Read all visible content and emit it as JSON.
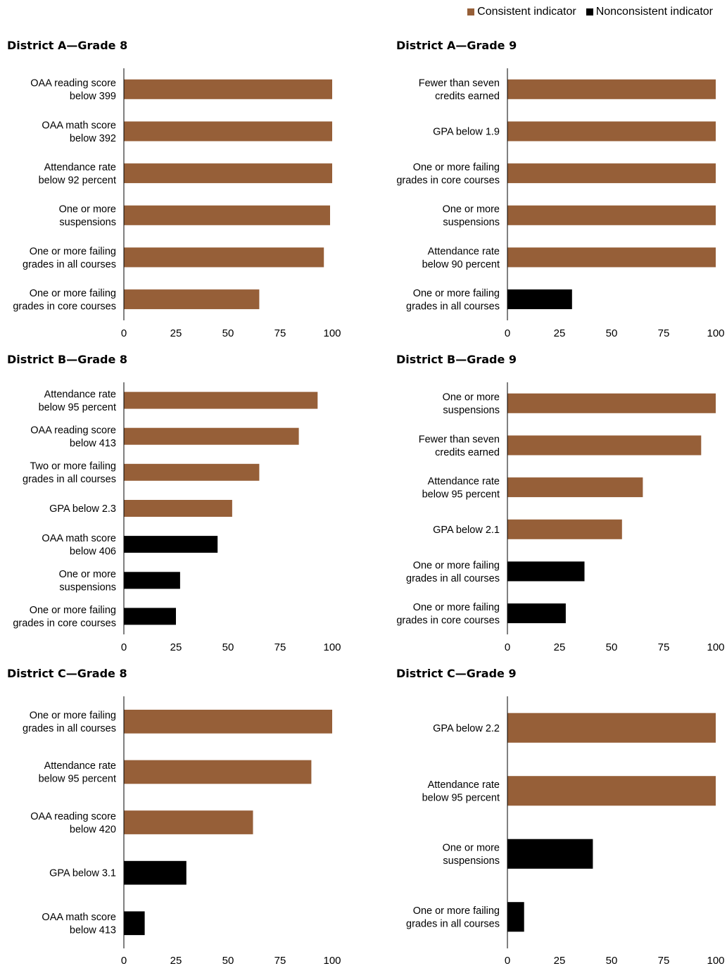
{
  "legend": [
    {
      "label": "Consistent indicator",
      "color": "#965F38"
    },
    {
      "label": "Nonconsistent indicator",
      "color": "#000000"
    }
  ],
  "chart_data": [
    {
      "type": "bar",
      "orientation": "horizontal",
      "title": "District A—Grade 8",
      "categories": [
        [
          "OAA reading score",
          "below 399"
        ],
        [
          "OAA math score",
          "below 392"
        ],
        [
          "Attendance rate",
          "below 92 percent"
        ],
        [
          "One or more",
          "suspensions"
        ],
        [
          "One or more failing",
          "grades in all courses"
        ],
        [
          "One or more failing",
          "grades in core courses"
        ]
      ],
      "values": [
        100,
        100,
        100,
        99,
        96,
        65
      ],
      "consistent": [
        true,
        true,
        true,
        true,
        true,
        true
      ],
      "xlim": [
        0,
        100
      ],
      "xticks": [
        0,
        25,
        50,
        75,
        100
      ]
    },
    {
      "type": "bar",
      "orientation": "horizontal",
      "title": "District A—Grade 9",
      "categories": [
        [
          "Fewer than seven",
          "credits earned"
        ],
        [
          "GPA below 1.9"
        ],
        [
          "One or more failing",
          "grades in core courses"
        ],
        [
          "One or more",
          "suspensions"
        ],
        [
          "Attendance rate",
          "below 90 percent"
        ],
        [
          "One or more failing",
          "grades in all courses"
        ]
      ],
      "values": [
        100,
        100,
        100,
        100,
        100,
        31
      ],
      "consistent": [
        true,
        true,
        true,
        true,
        true,
        false
      ],
      "xlim": [
        0,
        100
      ],
      "xticks": [
        0,
        25,
        50,
        75,
        100
      ]
    },
    {
      "type": "bar",
      "orientation": "horizontal",
      "title": "District B—Grade 8",
      "categories": [
        [
          "Attendance rate",
          "below 95 percent"
        ],
        [
          "OAA reading score",
          "below 413"
        ],
        [
          "Two or more failing",
          "grades in all courses"
        ],
        [
          "GPA below 2.3"
        ],
        [
          "OAA math score",
          "below 406"
        ],
        [
          "One or more",
          "suspensions"
        ],
        [
          "One or more failing",
          "grades in core courses"
        ]
      ],
      "values": [
        93,
        84,
        65,
        52,
        45,
        27,
        25
      ],
      "consistent": [
        true,
        true,
        true,
        true,
        false,
        false,
        false
      ],
      "xlim": [
        0,
        100
      ],
      "xticks": [
        0,
        25,
        50,
        75,
        100
      ]
    },
    {
      "type": "bar",
      "orientation": "horizontal",
      "title": "District B—Grade 9",
      "categories": [
        [
          "One or more",
          "suspensions"
        ],
        [
          "Fewer than seven",
          "credits earned"
        ],
        [
          "Attendance rate",
          "below 95 percent"
        ],
        [
          "GPA below 2.1"
        ],
        [
          "One or more failing",
          "grades in all courses"
        ],
        [
          "One or more failing",
          "grades in core courses"
        ]
      ],
      "values": [
        100,
        93,
        65,
        55,
        37,
        28
      ],
      "consistent": [
        true,
        true,
        true,
        true,
        false,
        false
      ],
      "xlim": [
        0,
        100
      ],
      "xticks": [
        0,
        25,
        50,
        75,
        100
      ]
    },
    {
      "type": "bar",
      "orientation": "horizontal",
      "title": "District C—Grade 8",
      "categories": [
        [
          "One or more failing",
          "grades in all courses"
        ],
        [
          "Attendance rate",
          "below 95 percent"
        ],
        [
          "OAA reading score",
          "below 420"
        ],
        [
          "GPA below 3.1"
        ],
        [
          "OAA math score",
          "below 413"
        ]
      ],
      "values": [
        100,
        90,
        62,
        30,
        10
      ],
      "consistent": [
        true,
        true,
        true,
        false,
        false
      ],
      "xlim": [
        0,
        100
      ],
      "xticks": [
        0,
        25,
        50,
        75,
        100
      ]
    },
    {
      "type": "bar",
      "orientation": "horizontal",
      "title": "District C—Grade 9",
      "categories": [
        [
          "GPA below 2.2"
        ],
        [
          "Attendance rate",
          "below 95 percent"
        ],
        [
          "One or more",
          "suspensions"
        ],
        [
          "One or more failing",
          "grades in all courses"
        ]
      ],
      "values": [
        100,
        100,
        41,
        8
      ],
      "consistent": [
        true,
        true,
        false,
        false
      ],
      "xlim": [
        0,
        100
      ],
      "xticks": [
        0,
        25,
        50,
        75,
        100
      ]
    }
  ]
}
